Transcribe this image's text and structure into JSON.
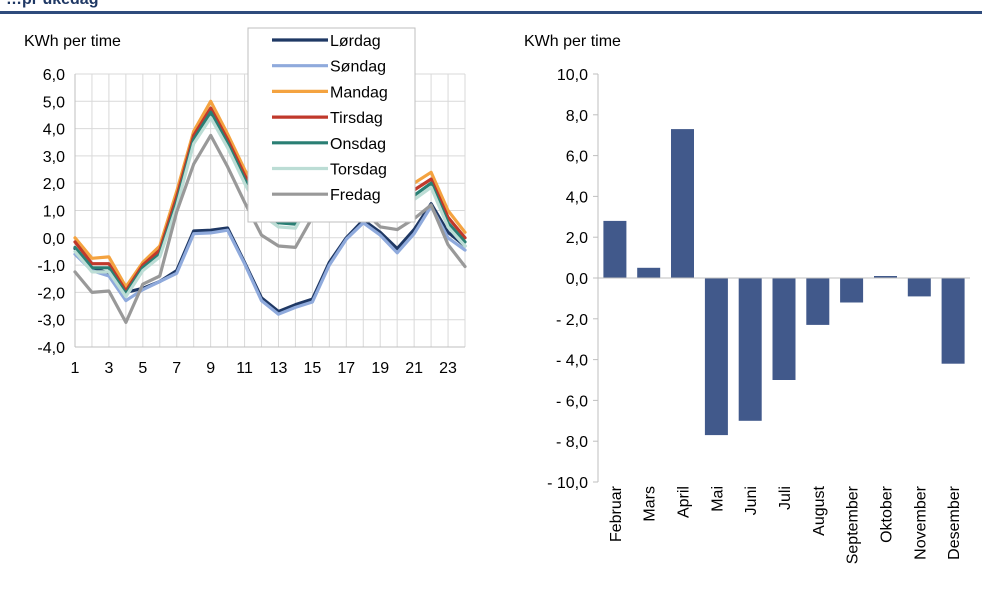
{
  "header": {
    "title": "…pr ukedag"
  },
  "chart_data": [
    {
      "type": "line",
      "ylabel": "KWh per time",
      "ylim": [
        -4.0,
        6.0
      ],
      "yticks": [
        "6,0",
        "5,0",
        "4,0",
        "3,0",
        "2,0",
        "1,0",
        "0,0",
        "-1,0",
        "-2,0",
        "-3,0",
        "-4,0"
      ],
      "xticks": [
        "1",
        "3",
        "5",
        "7",
        "9",
        "11",
        "13",
        "15",
        "17",
        "19",
        "21",
        "23"
      ],
      "x": [
        1,
        2,
        3,
        4,
        5,
        6,
        7,
        8,
        9,
        10,
        11,
        12,
        13,
        14,
        15,
        16,
        17,
        18,
        19,
        20,
        21,
        22,
        23,
        24
      ],
      "grid": true,
      "legend": "top-center",
      "series": [
        {
          "name": "Lørdag",
          "color": "#1f3864",
          "values": [
            -0.4,
            -1.1,
            -1.3,
            -2.0,
            -1.85,
            -1.6,
            -1.2,
            0.25,
            0.28,
            0.36,
            -0.9,
            -2.2,
            -2.7,
            -2.45,
            -2.25,
            -0.9,
            0.0,
            0.65,
            0.2,
            -0.4,
            0.3,
            1.25,
            0.2,
            -0.3
          ]
        },
        {
          "name": "Søndag",
          "color": "#8faadc",
          "values": [
            -0.6,
            -1.2,
            -1.4,
            -2.3,
            -1.9,
            -1.6,
            -1.3,
            0.15,
            0.18,
            0.28,
            -0.95,
            -2.3,
            -2.8,
            -2.55,
            -2.35,
            -1.0,
            -0.05,
            0.55,
            0.1,
            -0.55,
            0.15,
            1.15,
            0.0,
            -0.45
          ]
        },
        {
          "name": "Mandag",
          "color": "#f4a340",
          "values": [
            0.0,
            -0.75,
            -0.7,
            -1.8,
            -0.9,
            -0.3,
            1.7,
            3.9,
            5.0,
            3.8,
            2.5,
            1.4,
            0.95,
            0.9,
            1.9,
            2.75,
            2.65,
            2.3,
            1.7,
            1.6,
            2.0,
            2.4,
            1.0,
            0.2
          ]
        },
        {
          "name": "Tirsdag",
          "color": "#c0392b",
          "values": [
            -0.15,
            -0.95,
            -0.95,
            -1.95,
            -1.0,
            -0.45,
            1.5,
            3.75,
            4.75,
            3.6,
            2.3,
            1.15,
            0.75,
            0.7,
            1.75,
            2.5,
            2.45,
            2.05,
            1.45,
            1.35,
            1.75,
            2.15,
            0.75,
            0.0
          ]
        },
        {
          "name": "Onsdag",
          "color": "#2a7f74",
          "values": [
            -0.35,
            -1.1,
            -1.1,
            -2.05,
            -1.1,
            -0.6,
            1.3,
            3.6,
            4.6,
            3.45,
            2.15,
            1.0,
            0.55,
            0.5,
            1.6,
            2.3,
            2.25,
            1.85,
            1.25,
            1.15,
            1.55,
            2.0,
            0.55,
            -0.15
          ]
        },
        {
          "name": "Torsdag",
          "color": "#bcddd5",
          "values": [
            -0.5,
            -1.25,
            -1.25,
            -2.15,
            -1.2,
            -0.7,
            1.15,
            3.45,
            4.4,
            3.3,
            2.0,
            0.85,
            0.4,
            0.35,
            1.45,
            2.15,
            2.1,
            1.7,
            1.1,
            1.0,
            1.4,
            1.85,
            0.4,
            -0.3
          ]
        },
        {
          "name": "Fredag",
          "color": "#999999",
          "values": [
            -1.25,
            -2.0,
            -1.95,
            -3.1,
            -1.7,
            -1.4,
            0.95,
            2.7,
            3.75,
            2.6,
            1.3,
            0.1,
            -0.3,
            -0.35,
            0.75,
            1.45,
            1.35,
            1.0,
            0.4,
            0.3,
            0.7,
            1.2,
            -0.25,
            -1.05
          ]
        }
      ]
    },
    {
      "type": "bar",
      "ylabel": "KWh per time",
      "ylim": [
        -10.0,
        10.0
      ],
      "yticks": [
        "10,0",
        "8,0",
        "6,0",
        "4,0",
        "2,0",
        "0,0",
        "- 2,0",
        "- 4,0",
        "- 6,0",
        "- 8,0",
        "- 10,0"
      ],
      "categories": [
        "Februar",
        "Mars",
        "April",
        "Mai",
        "Juni",
        "Juli",
        "August",
        "September",
        "Oktober",
        "November",
        "Desember"
      ],
      "values": [
        2.8,
        0.5,
        7.3,
        -7.7,
        -7.0,
        -5.0,
        -2.3,
        -1.2,
        0.1,
        -0.9,
        -4.2
      ],
      "color": "#41598b",
      "grid": false
    }
  ]
}
